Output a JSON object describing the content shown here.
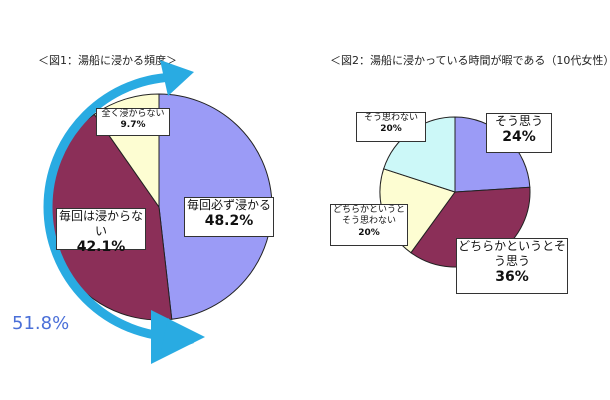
{
  "chart_data": [
    {
      "type": "pie",
      "title": "＜図1：湯船に浸かる頻度＞",
      "categories": [
        "毎回必ず浸かる",
        "毎回は浸からない",
        "全く浸からない"
      ],
      "values": [
        48.2,
        42.1,
        9.7
      ],
      "value_labels": [
        "48.2%",
        "42.1%",
        "9.7%"
      ],
      "colors": [
        "#9b9bf6",
        "#8b2f58",
        "#fdfdd2"
      ],
      "annotation": "51.8%"
    },
    {
      "type": "pie",
      "title": "＜図2：湯船に浸かっている時間が暇である（10代女性）＞",
      "categories": [
        "そう思う",
        "どちらかというとそう思う",
        "どちらかというとそう思わない",
        "そう思わない"
      ],
      "values": [
        24,
        36,
        20,
        20
      ],
      "value_labels": [
        "24%",
        "36%",
        "20%",
        "20%"
      ],
      "colors": [
        "#9b9bf6",
        "#8b2f58",
        "#fdfdd2",
        "#ccf8f8"
      ]
    }
  ]
}
